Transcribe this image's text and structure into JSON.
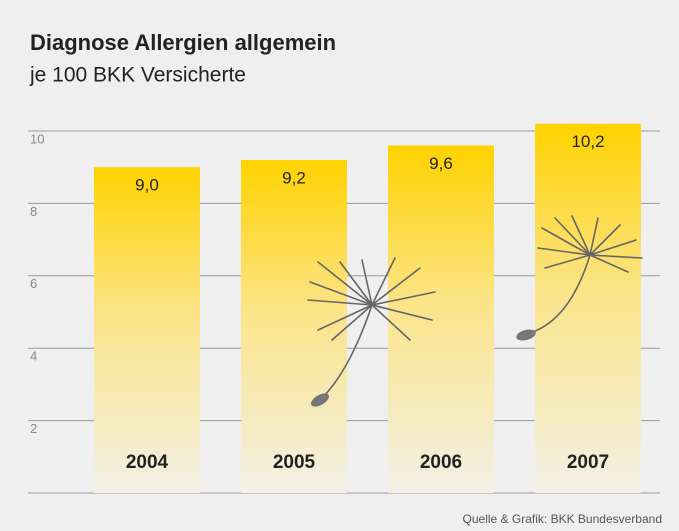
{
  "chart_data": {
    "type": "bar",
    "title": "Diagnose Allergien allgemein",
    "subtitle": "je 100 BKK Versicherte",
    "categories": [
      "2004",
      "2005",
      "2006",
      "2007"
    ],
    "values": [
      9.0,
      9.2,
      9.6,
      10.2
    ],
    "value_labels": [
      "9,0",
      "9,2",
      "9,6",
      "10,2"
    ],
    "color": "#ffd200",
    "ylim": [
      0,
      10
    ],
    "yticks": [
      2,
      4,
      6,
      8,
      10
    ],
    "grid": true,
    "source": "Quelle & Grafik: BKK Bundesverband"
  }
}
